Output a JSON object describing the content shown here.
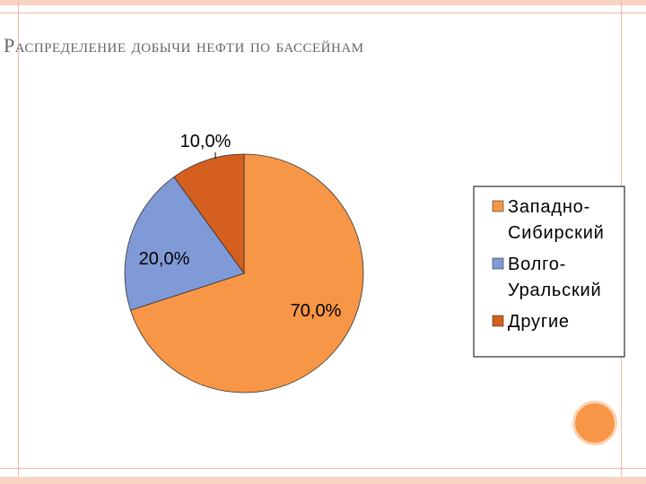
{
  "slide": {
    "title": "Распределение добычи нефти по бассейнам"
  },
  "chart_data": {
    "type": "pie",
    "categories": [
      "Западно-Сибирский",
      "Волго-Уральский",
      "Другие"
    ],
    "values": [
      70.0,
      20.0,
      10.0
    ],
    "value_labels": [
      "70,0%",
      "20,0%",
      "10,0%"
    ],
    "legend": {
      "placement": "right",
      "entries": [
        {
          "lines": [
            "Западно-",
            "Сибирский"
          ],
          "color": "#f79646"
        },
        {
          "lines": [
            "Волго-",
            "Уральский"
          ],
          "color": "#7f9ad6"
        },
        {
          "lines": [
            "Другие"
          ],
          "color": "#d55f1f"
        }
      ]
    },
    "colors": [
      "#f79646",
      "#7f9ad6",
      "#d55f1f"
    ]
  }
}
